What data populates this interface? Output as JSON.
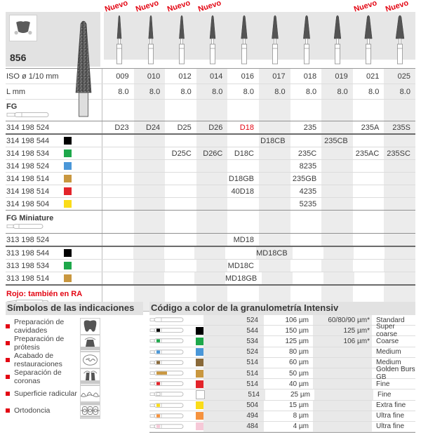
{
  "figure": {
    "number": "856"
  },
  "colors": {
    "accent_red": "#e30613",
    "black": "#000000",
    "green": "#1ea84b",
    "blue": "#4a97d8",
    "brown": "#8a6a3a",
    "gold": "#c9973f",
    "red": "#e3242b",
    "white": "#ffffff",
    "yellow": "#fadc19",
    "orange": "#f5923e",
    "pink": "#f6c9d8"
  },
  "top": {
    "nuevo_label": "Nuevo",
    "columns": [
      {
        "iso": "009",
        "l": "8.0",
        "nuevo": true
      },
      {
        "iso": "010",
        "l": "8.0",
        "nuevo": true
      },
      {
        "iso": "012",
        "l": "8.0",
        "nuevo": true
      },
      {
        "iso": "014",
        "l": "8.0",
        "nuevo": true
      },
      {
        "iso": "016",
        "l": "8.0",
        "nuevo": false
      },
      {
        "iso": "017",
        "l": "8.0",
        "nuevo": false
      },
      {
        "iso": "018",
        "l": "8.0",
        "nuevo": false
      },
      {
        "iso": "019",
        "l": "8.0",
        "nuevo": false
      },
      {
        "iso": "021",
        "l": "8.0",
        "nuevo": true
      },
      {
        "iso": "025",
        "l": "8.0",
        "nuevo": true
      }
    ]
  },
  "table": {
    "iso_label": "ISO ø 1/10 mm",
    "l_label": "L mm",
    "fg_label": "FG",
    "fg_min_label": "FG Miniature",
    "rojo_note": "Rojo: también en RA",
    "fg_rows": [
      {
        "code": "314 198 524",
        "color": null,
        "red_cells": [
          4
        ],
        "cells": [
          "D23",
          "D24",
          "D25",
          "D26",
          "D18",
          "",
          "235",
          "",
          "235A",
          "235S"
        ]
      },
      {
        "code": "314 198 544",
        "color": "#000000",
        "red_cells": [],
        "cells": [
          "",
          "",
          "",
          "",
          "",
          "D18CB",
          "",
          "235CB",
          "",
          ""
        ]
      },
      {
        "code": "314 198 534",
        "color": "#1ea84b",
        "red_cells": [],
        "cells": [
          "",
          "",
          "D25C",
          "D26C",
          "D18C",
          "",
          "235C",
          "",
          "235AC",
          "235SC"
        ]
      },
      {
        "code": "314 198 524",
        "color": "#4a97d8",
        "red_cells": [],
        "cells": [
          "",
          "",
          "",
          "",
          "",
          "",
          "8235",
          "",
          "",
          ""
        ]
      },
      {
        "code": "314 198 514",
        "color": "#c9973f",
        "red_cells": [],
        "cells": [
          "",
          "",
          "",
          "",
          "D18GB",
          "",
          "235GB",
          "",
          "",
          ""
        ]
      },
      {
        "code": "314 198 514",
        "color": "#e3242b",
        "red_cells": [],
        "cells": [
          "",
          "",
          "",
          "",
          "40D18",
          "",
          "4235",
          "",
          "",
          ""
        ]
      },
      {
        "code": "314 198 504",
        "color": "#fadc19",
        "red_cells": [],
        "cells": [
          "",
          "",
          "",
          "",
          "",
          "",
          "5235",
          "",
          "",
          ""
        ]
      }
    ],
    "fg_min_rows": [
      {
        "code": "313 198 524",
        "color": null,
        "red_cells": [],
        "cells": [
          "",
          "",
          "",
          "",
          "MD18",
          "",
          "",
          "",
          "",
          ""
        ]
      },
      {
        "code": "313 198 544",
        "color": "#000000",
        "red_cells": [],
        "cells": [
          "",
          "",
          "",
          "",
          "",
          "MD18CB",
          "",
          "",
          "",
          ""
        ]
      },
      {
        "code": "313 198 534",
        "color": "#1ea84b",
        "red_cells": [],
        "cells": [
          "",
          "",
          "",
          "",
          "MD18C",
          "",
          "",
          "",
          "",
          ""
        ]
      },
      {
        "code": "313 198 514",
        "color": "#c9973f",
        "red_cells": [],
        "cells": [
          "",
          "",
          "",
          "",
          "MD18GB",
          "",
          "",
          "",
          "",
          ""
        ]
      }
    ]
  },
  "symbols": {
    "title": "Símbolos de las indicaciones",
    "items": [
      {
        "label": "Preparación de cavidades",
        "icon": "cavity-prep-icon"
      },
      {
        "label": "Preparación de prótesis",
        "icon": "prosthesis-prep-icon"
      },
      {
        "label": "Acabado de restauraciones",
        "icon": "restoration-finish-icon"
      },
      {
        "label": "Separación de coronas",
        "icon": "crown-separation-icon"
      },
      {
        "label": "Superficie radicular",
        "icon": "root-surface-icon"
      },
      {
        "label": "Ortodoncia",
        "icon": "orthodontics-icon"
      }
    ]
  },
  "granulometry": {
    "title": "Código a color de la granulometría Intensiv",
    "rows": [
      {
        "color": null,
        "code": "524",
        "grain": "106 µm",
        "alt": "60/80/90 µm*",
        "name": "Standard"
      },
      {
        "color": "#000000",
        "code": "544",
        "grain": "150 µm",
        "alt": "125 µm*",
        "name": "Super coarse"
      },
      {
        "color": "#1ea84b",
        "code": "534",
        "grain": "125 µm",
        "alt": "106 µm*",
        "name": "Coarse"
      },
      {
        "color": "#4a97d8",
        "code": "524",
        "grain": "80 µm",
        "alt": "",
        "name": "Medium"
      },
      {
        "color": "#8a6a3a",
        "code": "514",
        "grain": "60 µm",
        "alt": "",
        "name": "Medium"
      },
      {
        "color": "#c9973f",
        "code": "514",
        "grain": "50 µm",
        "alt": "",
        "name": "Golden Burs GB"
      },
      {
        "color": "#e3242b",
        "code": "514",
        "grain": "40 µm",
        "alt": "",
        "name": "Fine"
      },
      {
        "color": "#ffffff",
        "code": "514",
        "grain": "25 µm",
        "alt": "",
        "name": "Fine"
      },
      {
        "color": "#fadc19",
        "code": "504",
        "grain": "15 µm",
        "alt": "",
        "name": "Extra fine"
      },
      {
        "color": "#f5923e",
        "code": "494",
        "grain": "8 µm",
        "alt": "",
        "name": "Ultra fine"
      },
      {
        "color": "#f6c9d8",
        "code": "484",
        "grain": "4 µm",
        "alt": "",
        "name": "Ultra fine"
      }
    ]
  }
}
